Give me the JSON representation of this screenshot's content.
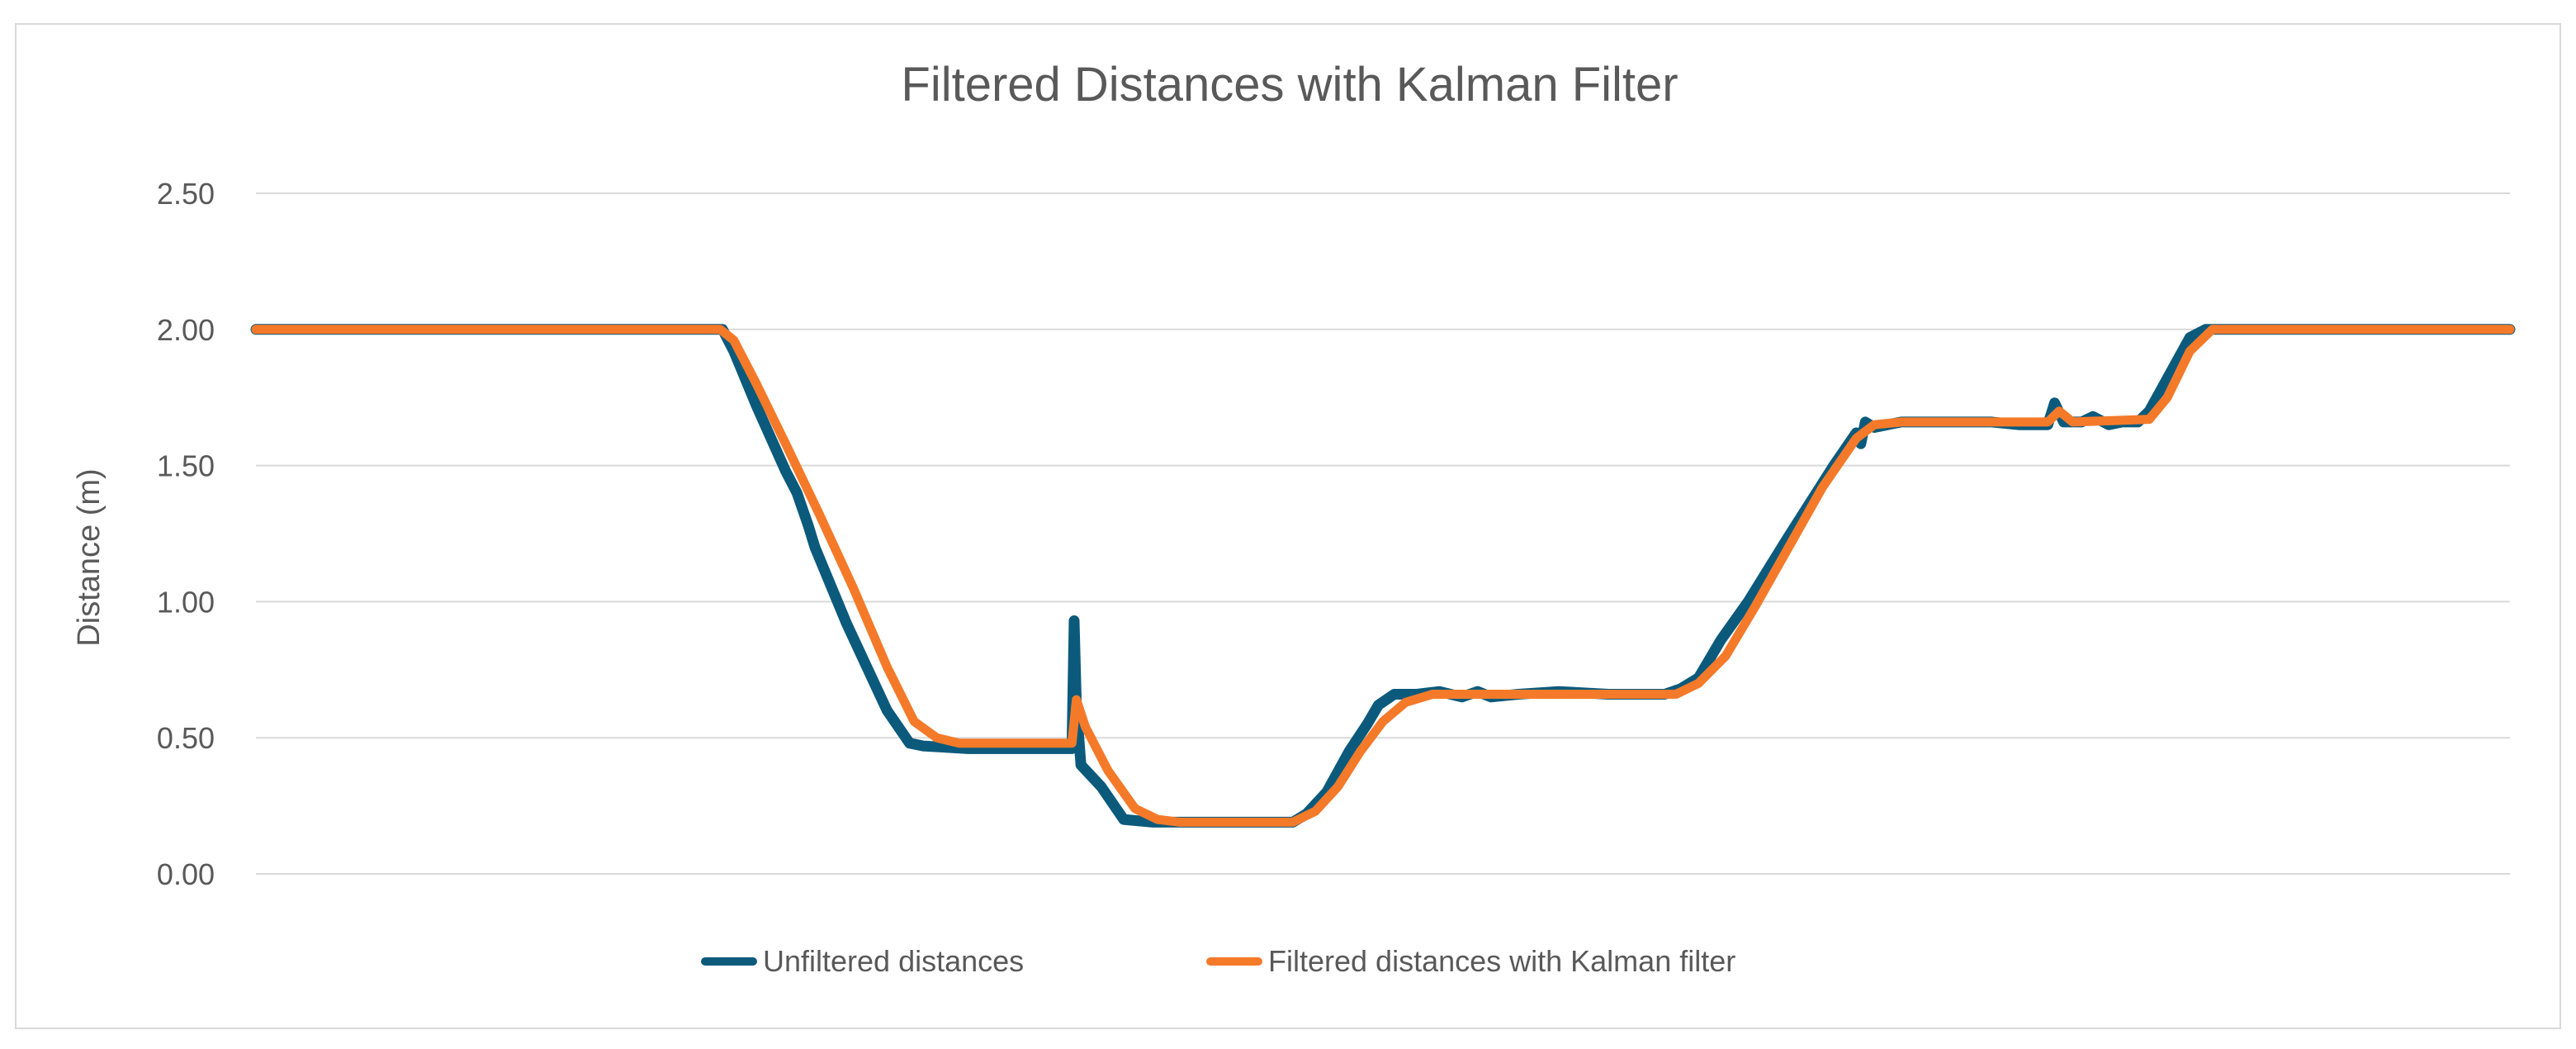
{
  "chart_data": {
    "type": "line",
    "title": "Filtered Distances with Kalman Filter",
    "xlabel": "",
    "ylabel": "Distance (m)",
    "ylim": [
      0,
      2.5
    ],
    "yticks": [
      "0.00",
      "0.50",
      "1.00",
      "1.50",
      "2.00",
      "2.50"
    ],
    "xlim": [
      0,
      1000
    ],
    "grid": true,
    "legend_position": "bottom",
    "series": [
      {
        "name": "Unfiltered distances",
        "color": "#0b5a7c",
        "points": [
          [
            0,
            2.0
          ],
          [
            207,
            2.0
          ],
          [
            212,
            1.92
          ],
          [
            222,
            1.72
          ],
          [
            235,
            1.48
          ],
          [
            240,
            1.4
          ],
          [
            245,
            1.28
          ],
          [
            248,
            1.2
          ],
          [
            262,
            0.92
          ],
          [
            280,
            0.6
          ],
          [
            290,
            0.48
          ],
          [
            296,
            0.47
          ],
          [
            316,
            0.46
          ],
          [
            318,
            0.46
          ],
          [
            362,
            0.46
          ],
          [
            363,
            0.93
          ],
          [
            364,
            0.62
          ],
          [
            366,
            0.4
          ],
          [
            375,
            0.32
          ],
          [
            385,
            0.2
          ],
          [
            398,
            0.19
          ],
          [
            420,
            0.19
          ],
          [
            460,
            0.19
          ],
          [
            466,
            0.22
          ],
          [
            475,
            0.3
          ],
          [
            485,
            0.45
          ],
          [
            493,
            0.55
          ],
          [
            498,
            0.62
          ],
          [
            505,
            0.66
          ],
          [
            515,
            0.66
          ],
          [
            525,
            0.67
          ],
          [
            535,
            0.65
          ],
          [
            542,
            0.67
          ],
          [
            548,
            0.65
          ],
          [
            560,
            0.66
          ],
          [
            578,
            0.67
          ],
          [
            600,
            0.66
          ],
          [
            625,
            0.66
          ],
          [
            632,
            0.68
          ],
          [
            640,
            0.72
          ],
          [
            650,
            0.86
          ],
          [
            662,
            1.0
          ],
          [
            680,
            1.24
          ],
          [
            700,
            1.5
          ],
          [
            710,
            1.62
          ],
          [
            712,
            1.58
          ],
          [
            714,
            1.66
          ],
          [
            718,
            1.64
          ],
          [
            730,
            1.66
          ],
          [
            760,
            1.66
          ],
          [
            770,
            1.66
          ],
          [
            782,
            1.65
          ],
          [
            795,
            1.65
          ],
          [
            798,
            1.73
          ],
          [
            802,
            1.66
          ],
          [
            810,
            1.66
          ],
          [
            815,
            1.68
          ],
          [
            822,
            1.65
          ],
          [
            828,
            1.66
          ],
          [
            835,
            1.66
          ],
          [
            840,
            1.7
          ],
          [
            850,
            1.85
          ],
          [
            858,
            1.97
          ],
          [
            865,
            2.0
          ],
          [
            1000,
            2.0
          ]
        ]
      },
      {
        "name": "Filtered distances with Kalman filter",
        "color": "#f47a2a",
        "points": [
          [
            0,
            2.0
          ],
          [
            206,
            2.0
          ],
          [
            212,
            1.96
          ],
          [
            222,
            1.8
          ],
          [
            235,
            1.58
          ],
          [
            250,
            1.32
          ],
          [
            265,
            1.05
          ],
          [
            280,
            0.76
          ],
          [
            292,
            0.56
          ],
          [
            302,
            0.5
          ],
          [
            312,
            0.48
          ],
          [
            362,
            0.48
          ],
          [
            364,
            0.64
          ],
          [
            368,
            0.54
          ],
          [
            378,
            0.38
          ],
          [
            390,
            0.24
          ],
          [
            400,
            0.2
          ],
          [
            410,
            0.19
          ],
          [
            460,
            0.19
          ],
          [
            470,
            0.23
          ],
          [
            480,
            0.32
          ],
          [
            490,
            0.45
          ],
          [
            500,
            0.56
          ],
          [
            510,
            0.63
          ],
          [
            522,
            0.66
          ],
          [
            540,
            0.66
          ],
          [
            630,
            0.66
          ],
          [
            640,
            0.7
          ],
          [
            652,
            0.8
          ],
          [
            665,
            0.98
          ],
          [
            680,
            1.2
          ],
          [
            695,
            1.42
          ],
          [
            710,
            1.6
          ],
          [
            718,
            1.65
          ],
          [
            730,
            1.66
          ],
          [
            795,
            1.66
          ],
          [
            800,
            1.7
          ],
          [
            806,
            1.66
          ],
          [
            840,
            1.67
          ],
          [
            848,
            1.75
          ],
          [
            858,
            1.92
          ],
          [
            868,
            2.0
          ],
          [
            1000,
            2.0
          ]
        ]
      }
    ]
  }
}
